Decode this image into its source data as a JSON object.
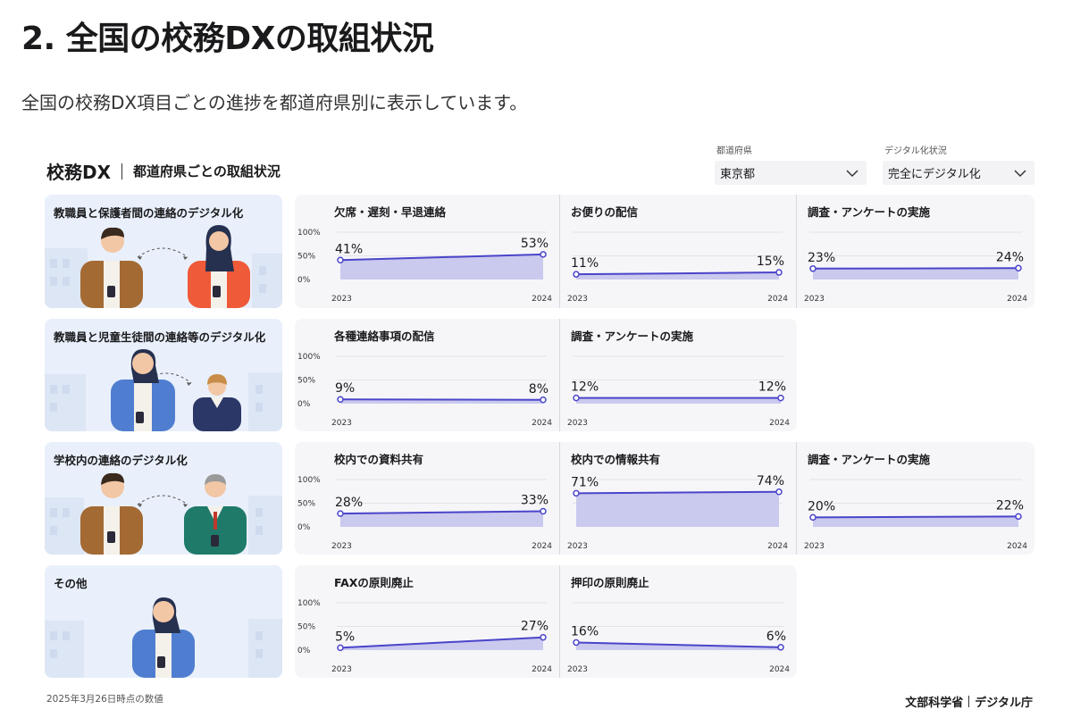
{
  "page": {
    "title": "2. 全国の校務DXの取組状況",
    "subtitle": "全国の校務DX項目ごとの進捗を都道府県別に表示しています。"
  },
  "dashboard": {
    "title": "校務DX",
    "subtitle": "都道府県ごとの取組状況"
  },
  "filters": {
    "prefecture_label": "都道府県",
    "prefecture_value": "東京都",
    "status_label": "デジタル化状況",
    "status_value": "完全にデジタル化"
  },
  "footer": {
    "as_of": "2025年3月26日時点の数値",
    "ministry": "文部科学省",
    "agency": "デジタル庁"
  },
  "colors": {
    "line": "#4a45c9",
    "area": "#c5c4ec",
    "panel": "#f6f6f9",
    "category": "#e9f0fb"
  },
  "chart_data": {
    "type": "line",
    "x": [
      "2023",
      "2024"
    ],
    "y_ticks": [
      "100%",
      "50%",
      "0%"
    ],
    "ylim": [
      0,
      100
    ],
    "groups": [
      {
        "category": "教職員と保護者間の連絡のデジタル化",
        "charts": [
          {
            "title": "欠席・遅刻・早退連絡",
            "values": [
              41,
              53
            ],
            "labels": [
              "41%",
              "53%"
            ]
          },
          {
            "title": "お便りの配信",
            "values": [
              11,
              15
            ],
            "labels": [
              "11%",
              "15%"
            ]
          },
          {
            "title": "調査・アンケートの実施",
            "values": [
              23,
              24
            ],
            "labels": [
              "23%",
              "24%"
            ]
          }
        ]
      },
      {
        "category": "教職員と児童生徒間の連絡等のデジタル化",
        "charts": [
          {
            "title": "各種連絡事項の配信",
            "values": [
              9,
              8
            ],
            "labels": [
              "9%",
              "8%"
            ]
          },
          {
            "title": "調査・アンケートの実施",
            "values": [
              12,
              12
            ],
            "labels": [
              "12%",
              "12%"
            ]
          }
        ]
      },
      {
        "category": "学校内の連絡のデジタル化",
        "charts": [
          {
            "title": "校内での資料共有",
            "values": [
              28,
              33
            ],
            "labels": [
              "28%",
              "33%"
            ]
          },
          {
            "title": "校内での情報共有",
            "values": [
              71,
              74
            ],
            "labels": [
              "71%",
              "74%"
            ]
          },
          {
            "title": "調査・アンケートの実施",
            "values": [
              20,
              22
            ],
            "labels": [
              "20%",
              "22%"
            ]
          }
        ]
      },
      {
        "category": "その他",
        "charts": [
          {
            "title": "FAXの原則廃止",
            "values": [
              5,
              27
            ],
            "labels": [
              "5%",
              "27%"
            ]
          },
          {
            "title": "押印の原則廃止",
            "values": [
              16,
              6
            ],
            "labels": [
              "16%",
              "6%"
            ]
          }
        ]
      }
    ]
  }
}
